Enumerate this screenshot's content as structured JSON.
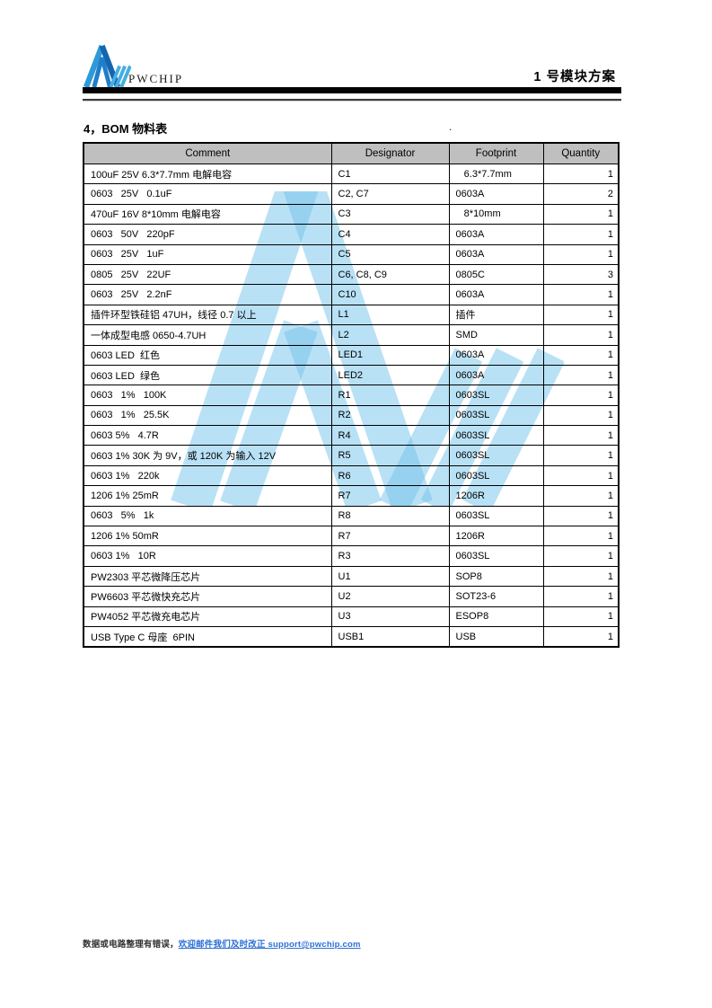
{
  "header": {
    "logo_text": "PWCHIP",
    "doc_title": "1 号模块方案",
    "logo_colors": {
      "left_leg": "#2e9ad8",
      "right_leg": "#1565b0",
      "inner": "#1f7ec9",
      "slash": "#44aee3"
    }
  },
  "section": {
    "title": "4，BOM 物料表",
    "stray_dot": "."
  },
  "table": {
    "columns": [
      "Comment",
      "Designator",
      "Footprint",
      "Quantity"
    ],
    "rows": [
      {
        "comment": "100uF 25V 6.3*7.7mm 电解电容",
        "designator": "C1",
        "footprint": "   6.3*7.7mm",
        "quantity": 1
      },
      {
        "comment": "0603   25V   0.1uF",
        "designator": "C2, C7",
        "footprint": "0603A",
        "quantity": 2
      },
      {
        "comment": "470uF 16V 8*10mm 电解电容",
        "designator": "C3",
        "footprint": "   8*10mm",
        "quantity": 1
      },
      {
        "comment": "0603   50V   220pF",
        "designator": "C4",
        "footprint": "0603A",
        "quantity": 1
      },
      {
        "comment": "0603   25V   1uF",
        "designator": "C5",
        "footprint": "0603A",
        "quantity": 1
      },
      {
        "comment": "0805   25V   22UF",
        "designator": "C6, C8, C9",
        "footprint": "0805C",
        "quantity": 3
      },
      {
        "comment": "0603   25V   2.2nF",
        "designator": "C10",
        "footprint": "0603A",
        "quantity": 1
      },
      {
        "comment": "插件环型铁硅铝 47UH，线径 0.7 以上",
        "designator": "L1",
        "footprint": "插件",
        "quantity": 1
      },
      {
        "comment": "一体成型电感 0650-4.7UH",
        "designator": "L2",
        "footprint": "SMD",
        "quantity": 1
      },
      {
        "comment": "0603 LED  红色",
        "designator": "LED1",
        "footprint": "0603A",
        "quantity": 1
      },
      {
        "comment": "0603 LED  绿色",
        "designator": "LED2",
        "footprint": "0603A",
        "quantity": 1
      },
      {
        "comment": "0603   1%   100K",
        "designator": "R1",
        "footprint": "0603SL",
        "quantity": 1
      },
      {
        "comment": "0603   1%   25.5K",
        "designator": "R2",
        "footprint": "0603SL",
        "quantity": 1
      },
      {
        "comment": "0603 5%   4.7R",
        "designator": "R4",
        "footprint": "0603SL",
        "quantity": 1
      },
      {
        "comment": "0603 1% 30K 为 9V，或 120K 为输入 12V",
        "designator": "R5",
        "footprint": "0603SL",
        "quantity": 1
      },
      {
        "comment": "0603 1%   220k",
        "designator": "R6",
        "footprint": "0603SL",
        "quantity": 1
      },
      {
        "comment": "1206 1% 25mR",
        "designator": "R7",
        "footprint": "1206R",
        "quantity": 1
      },
      {
        "comment": "0603   5%   1k",
        "designator": "R8",
        "footprint": "0603SL",
        "quantity": 1
      },
      {
        "comment": "1206 1% 50mR",
        "designator": "R7",
        "footprint": "1206R",
        "quantity": 1
      },
      {
        "comment": "0603 1%   10R",
        "designator": "R3",
        "footprint": "0603SL",
        "quantity": 1
      },
      {
        "comment": "PW2303 平芯微降压芯片",
        "designator": "U1",
        "footprint": "SOP8",
        "quantity": 1
      },
      {
        "comment": "PW6603 平芯微快充芯片",
        "designator": "U2",
        "footprint": "SOT23-6",
        "quantity": 1
      },
      {
        "comment": "PW4052 平芯微充电芯片",
        "designator": "U3",
        "footprint": "ESOP8",
        "quantity": 1
      },
      {
        "comment": "USB Type C 母座  6PIN",
        "designator": "USB1",
        "footprint": "USB",
        "quantity": 1
      }
    ]
  },
  "watermark": {
    "color": "#74c3ec"
  },
  "footer": {
    "prefix": "数据或电路整理有错误，",
    "link_text": "欢迎邮件我们及时改正 support@pwchip.com",
    "link_color": "#2c6fd6"
  },
  "colors": {
    "table_header_bg": "#bfbfbf",
    "table_border": "#000000",
    "header_bar": "#030303"
  }
}
